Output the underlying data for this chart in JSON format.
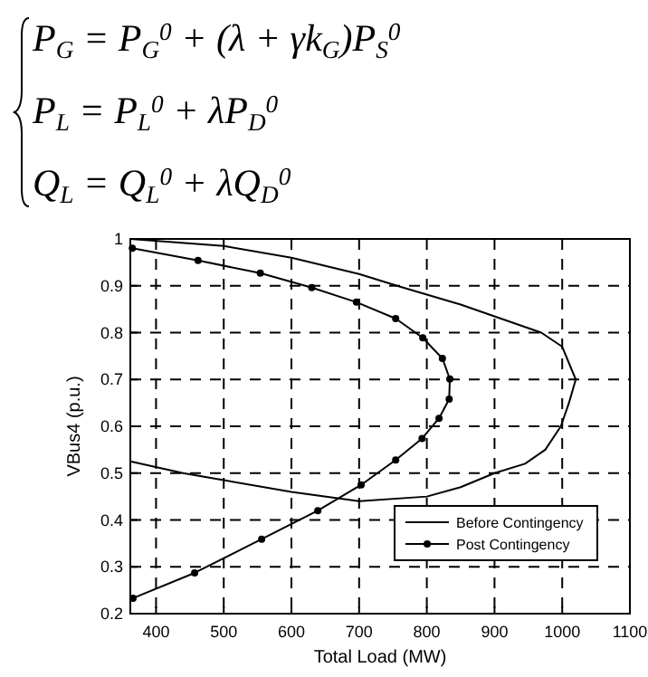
{
  "chart_data": {
    "type": "line",
    "xlabel": "Total Load (MW)",
    "ylabel": "VBus4 (p.u.)",
    "annotations": [
      "P$_{G}$ = P$_{G}$$^{0}$ + (λ + γk$_{G}$)P$_{S}$$^{0}$",
      "P$_{L}$ = P$_{L}$$^{0}$ + λP$_{D}$$^{0}$",
      "Q$_{L}$ = Q$_{L}$$^{0}$ + λQ$_{D}$$^{0}$"
    ],
    "xlim": [
      362,
      1100
    ],
    "xticks": [
      400,
      500,
      600,
      700,
      800,
      900,
      1000,
      1100
    ],
    "ylim": [
      0.2,
      1
    ],
    "yticks": [
      0.2,
      0.3,
      0.4,
      0.5,
      0.6,
      0.7,
      0.8,
      0.9,
      1
    ],
    "grid": true,
    "legend": "bottom right",
    "series": [
      {
        "name": "Before Contingency",
        "color": "#000000",
        "marker": "none",
        "x": [
          362,
          500,
          600,
          700,
          756,
          850,
          969,
          1000,
          1020,
          1010,
          998,
          975,
          945,
          900,
          850,
          800,
          700,
          600,
          500,
          440,
          362
        ],
        "values": [
          1.0,
          0.985,
          0.96,
          0.925,
          0.9,
          0.86,
          0.8,
          0.77,
          0.7,
          0.65,
          0.6,
          0.55,
          0.52,
          0.5,
          0.47,
          0.45,
          0.44,
          0.46,
          0.485,
          0.5,
          0.525
        ]
      },
      {
        "name": "Post Contingency",
        "color": "#000000",
        "marker": "circle",
        "x": [
          365,
          462,
          554,
          630,
          696,
          754,
          794,
          823,
          834,
          833,
          818,
          793,
          754,
          703,
          639,
          556,
          457,
          366
        ],
        "values": [
          0.98,
          0.954,
          0.927,
          0.896,
          0.865,
          0.83,
          0.789,
          0.745,
          0.701,
          0.658,
          0.617,
          0.574,
          0.528,
          0.475,
          0.42,
          0.359,
          0.287,
          0.233
        ]
      }
    ]
  }
}
